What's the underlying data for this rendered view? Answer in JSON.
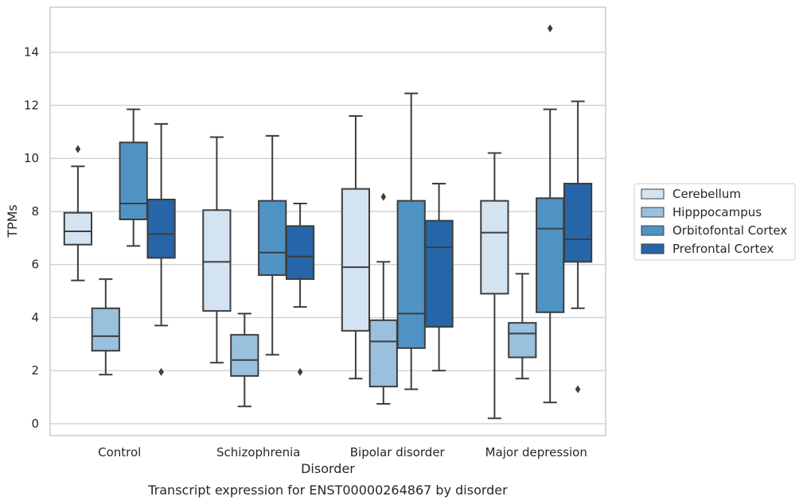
{
  "caption": "Transcript expression for ENST00000264867 by disorder",
  "chart_data": {
    "type": "box",
    "xlabel": "Disorder",
    "ylabel": "TPMs",
    "ylim": [
      -0.45,
      15.7
    ],
    "yticks": [
      0,
      2,
      4,
      6,
      8,
      10,
      12,
      14
    ],
    "grid": "horizontal",
    "legend_position": "right",
    "categories": [
      "Control",
      "Schizophrenia",
      "Bipolar disorder",
      "Major depression"
    ],
    "series": [
      {
        "name": "Cerebellum",
        "color": "#d3e3f1",
        "boxes": [
          {
            "whislo": 5.4,
            "q1": 6.75,
            "med": 7.25,
            "q3": 7.95,
            "whishi": 9.7,
            "fliers": [
              10.35
            ]
          },
          {
            "whislo": 2.3,
            "q1": 4.25,
            "med": 6.1,
            "q3": 8.05,
            "whishi": 10.8,
            "fliers": []
          },
          {
            "whislo": 1.7,
            "q1": 3.5,
            "med": 5.9,
            "q3": 8.85,
            "whishi": 11.6,
            "fliers": []
          },
          {
            "whislo": 0.2,
            "q1": 4.9,
            "med": 7.2,
            "q3": 8.4,
            "whishi": 10.2,
            "fliers": []
          }
        ]
      },
      {
        "name": "Hipppocampus",
        "color": "#99c0dd",
        "boxes": [
          {
            "whislo": 1.85,
            "q1": 2.75,
            "med": 3.3,
            "q3": 4.35,
            "whishi": 5.45,
            "fliers": []
          },
          {
            "whislo": 0.65,
            "q1": 1.8,
            "med": 2.4,
            "q3": 3.35,
            "whishi": 4.15,
            "fliers": []
          },
          {
            "whislo": 0.75,
            "q1": 1.4,
            "med": 3.1,
            "q3": 3.9,
            "whishi": 6.1,
            "fliers": [
              8.55
            ]
          },
          {
            "whislo": 1.7,
            "q1": 2.5,
            "med": 3.4,
            "q3": 3.8,
            "whishi": 5.65,
            "fliers": []
          }
        ]
      },
      {
        "name": "Orbitofontal Cortex",
        "color": "#4f93c5",
        "boxes": [
          {
            "whislo": 6.7,
            "q1": 7.7,
            "med": 8.3,
            "q3": 10.6,
            "whishi": 11.85,
            "fliers": []
          },
          {
            "whislo": 2.6,
            "q1": 5.6,
            "med": 6.45,
            "q3": 8.4,
            "whishi": 10.85,
            "fliers": []
          },
          {
            "whislo": 1.3,
            "q1": 2.85,
            "med": 4.15,
            "q3": 8.4,
            "whishi": 12.45,
            "fliers": []
          },
          {
            "whislo": 0.8,
            "q1": 4.2,
            "med": 7.35,
            "q3": 8.5,
            "whishi": 11.85,
            "fliers": [
              14.9
            ]
          }
        ]
      },
      {
        "name": "Prefrontal Cortex",
        "color": "#2665a8",
        "boxes": [
          {
            "whislo": 3.7,
            "q1": 6.25,
            "med": 7.15,
            "q3": 8.45,
            "whishi": 11.3,
            "fliers": [
              1.95
            ]
          },
          {
            "whislo": 4.4,
            "q1": 5.45,
            "med": 6.3,
            "q3": 7.45,
            "whishi": 8.3,
            "fliers": [
              1.95
            ]
          },
          {
            "whislo": 2.0,
            "q1": 3.65,
            "med": 6.65,
            "q3": 7.65,
            "whishi": 9.05,
            "fliers": []
          },
          {
            "whislo": 4.35,
            "q1": 6.1,
            "med": 6.95,
            "q3": 9.05,
            "whishi": 12.15,
            "fliers": [
              1.3
            ]
          }
        ]
      }
    ]
  }
}
